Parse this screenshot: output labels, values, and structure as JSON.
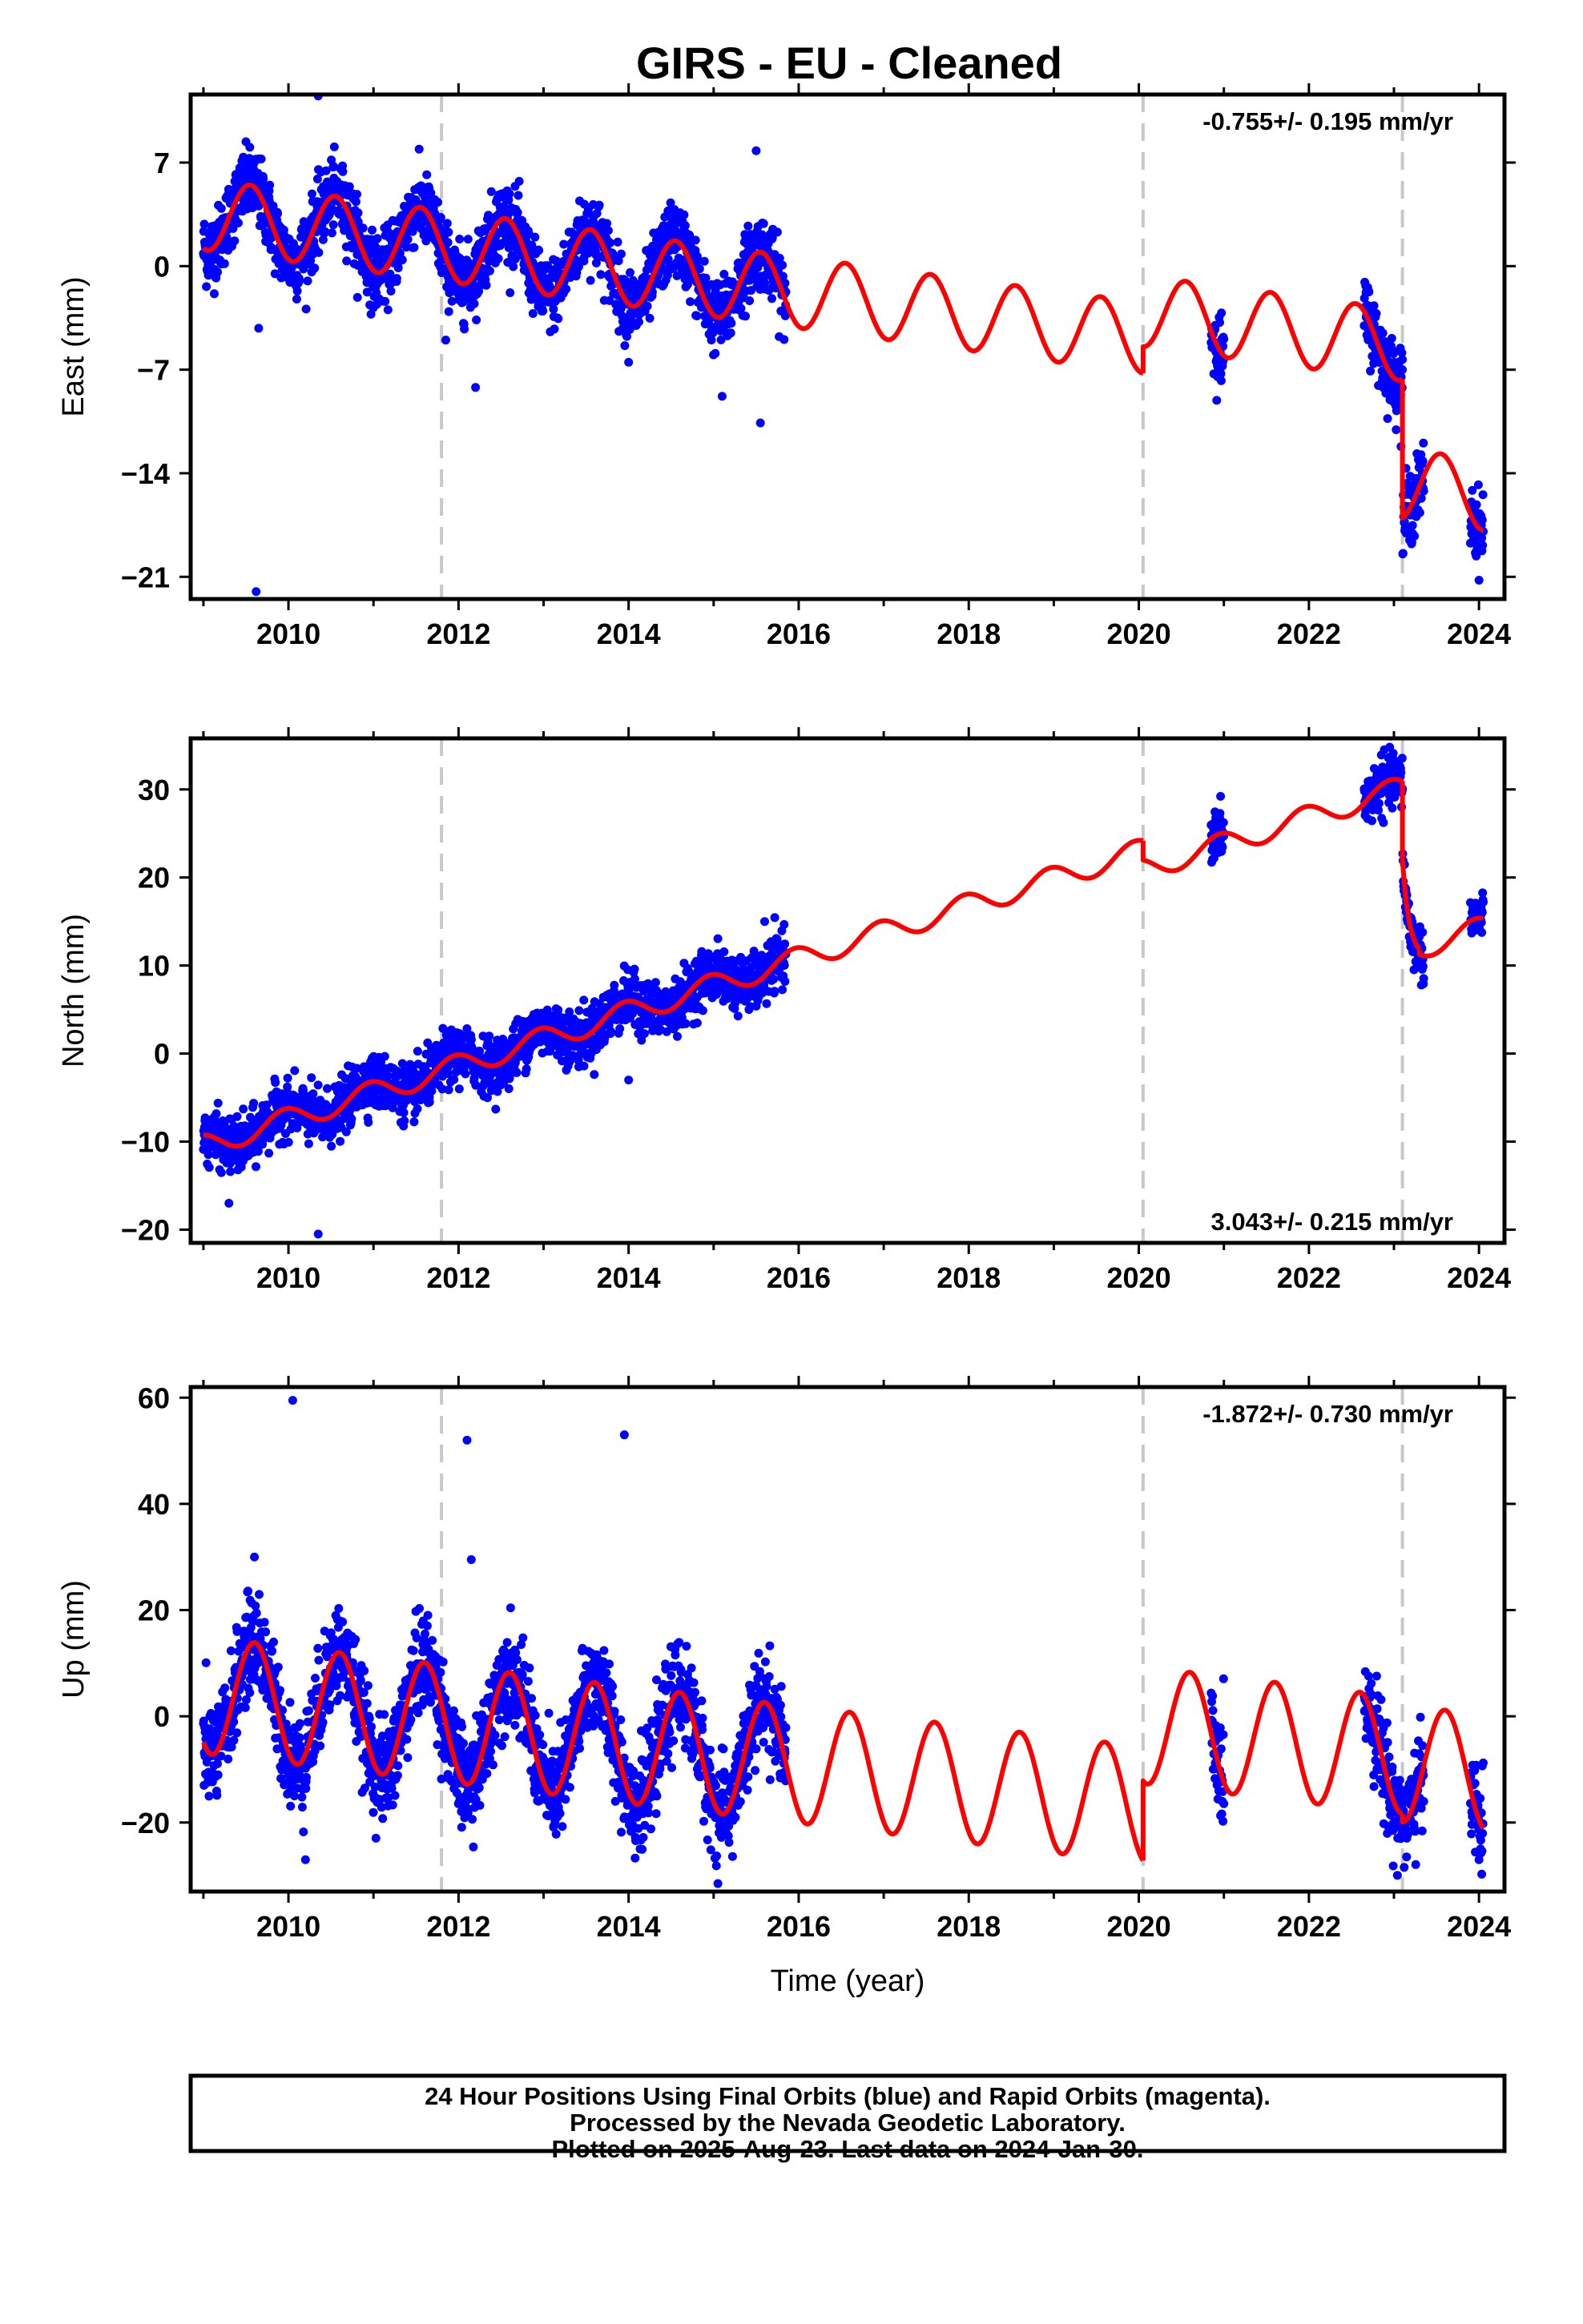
{
  "colors": {
    "data_points": "#0000ff",
    "model_line": "#ff0000",
    "event_lines": "#c8c8c8",
    "frame": "#000000"
  },
  "title": "GIRS  - EU - Cleaned",
  "footer": {
    "lines": [
      "24 Hour Positions Using Final Orbits (blue) and Rapid Orbits (magenta).",
      "Processed by the Nevada Geodetic Laboratory.",
      "Plotted on 2025-Aug-23. Last data on 2024-Jan-30."
    ]
  },
  "chart_data": [
    {
      "type": "scatter",
      "component": "East",
      "ylabel": "East (mm)",
      "xlabel": "",
      "xlim": [
        2008.85,
        2024.3
      ],
      "ylim": [
        -22.5,
        11.6
      ],
      "xticks": [
        2010,
        2012,
        2014,
        2016,
        2018,
        2020,
        2022,
        2024
      ],
      "yticks": [
        -21,
        -14,
        -7,
        0,
        7
      ],
      "ytick_labels": [
        "−21",
        "−14",
        "−7",
        "0",
        "7"
      ],
      "rate": "-0.755+/- 0.195 mm/yr",
      "rate_position": "top-right",
      "event_lines": [
        2011.8,
        2020.05,
        2023.1
      ],
      "model": {
        "segments": [
          {
            "start": 2009.0,
            "end": 2020.05,
            "offset": 3.5,
            "slope": -0.755,
            "annual": 2.4,
            "phase": 2009.55
          },
          {
            "start": 2020.05,
            "end": 2023.1,
            "offset": 3.5,
            "slope": -0.755,
            "annual": 2.4,
            "phase": 2009.55,
            "step": 1.8
          },
          {
            "start": 2023.1,
            "end": 2024.05,
            "offset": 3.5,
            "slope": -0.755,
            "annual": 2.4,
            "phase": 2009.55,
            "step": -7.6
          }
        ]
      },
      "observations": {
        "intervals": [
          [
            2009.0,
            2015.85
          ],
          [
            2020.85,
            2021.0
          ],
          [
            2022.65,
            2023.1
          ],
          [
            2023.1,
            2023.35
          ],
          [
            2023.9,
            2024.05
          ]
        ],
        "scatter_sd": 1.2,
        "outliers": [
          [
            2009.62,
            -22.0
          ],
          [
            2010.35,
            11.5
          ],
          [
            2012.2,
            -8.2
          ],
          [
            2014.0,
            -6.5
          ],
          [
            2015.1,
            -8.8
          ],
          [
            2015.5,
            7.8
          ],
          [
            2015.55,
            -10.6
          ],
          [
            2009.65,
            -4.2
          ],
          [
            2011.85,
            -5.0
          ]
        ]
      }
    },
    {
      "type": "scatter",
      "component": "North",
      "ylabel": "North (mm)",
      "xlabel": "",
      "xlim": [
        2008.85,
        2024.3
      ],
      "ylim": [
        -21.5,
        35.8
      ],
      "xticks": [
        2010,
        2012,
        2014,
        2016,
        2018,
        2020,
        2022,
        2024
      ],
      "yticks": [
        -20,
        -10,
        0,
        10,
        20,
        30
      ],
      "ytick_labels": [
        "−20",
        "−10",
        "0",
        "10",
        "20",
        "30"
      ],
      "rate": "3.043+/- 0.215 mm/yr",
      "rate_position": "bottom-right",
      "event_lines": [
        2011.8,
        2020.05,
        2023.1
      ],
      "model": {
        "segments": [
          {
            "start": 2009.0,
            "end": 2020.05,
            "offset": -10.5,
            "slope": 3.043,
            "annual": 1.3,
            "phase": 2009.95
          },
          {
            "start": 2020.05,
            "end": 2023.1,
            "offset": -10.5,
            "slope": 3.043,
            "annual": 1.3,
            "phase": 2009.95,
            "step": -2.2
          },
          {
            "start": 2023.1,
            "end": 2023.3,
            "offset": -10.5,
            "slope": 3.043,
            "annual": 1.3,
            "phase": 2009.95,
            "step": -21.0,
            "decay": 10.0,
            "tau": 0.07
          },
          {
            "start": 2023.3,
            "end": 2024.05,
            "offset": -10.5,
            "slope": 3.043,
            "annual": 1.3,
            "phase": 2009.95,
            "step": -21.0
          }
        ]
      },
      "observations": {
        "intervals": [
          [
            2009.0,
            2015.85
          ],
          [
            2020.85,
            2021.0
          ],
          [
            2022.65,
            2023.1
          ],
          [
            2023.1,
            2023.35
          ],
          [
            2023.9,
            2024.05
          ]
        ],
        "scatter_sd": 1.5,
        "outliers": [
          [
            2009.3,
            -17.0
          ],
          [
            2010.35,
            -20.5
          ],
          [
            2015.6,
            15.0
          ],
          [
            2022.95,
            34.8
          ],
          [
            2014.0,
            -3.0
          ]
        ]
      }
    },
    {
      "type": "scatter",
      "component": "Up",
      "ylabel": "Up (mm)",
      "xlabel": "Time (year)",
      "xlim": [
        2008.85,
        2024.3
      ],
      "ylim": [
        -33.0,
        62.0
      ],
      "xticks": [
        2010,
        2012,
        2014,
        2016,
        2018,
        2020,
        2022,
        2024
      ],
      "yticks": [
        -20,
        0,
        20,
        40,
        60
      ],
      "ytick_labels": [
        "−20",
        "0",
        "20",
        "40",
        "60"
      ],
      "rate": "-1.872+/- 0.730 mm/yr",
      "rate_position": "top-right",
      "event_lines": [
        2011.8,
        2020.05,
        2023.1
      ],
      "model": {
        "segments": [
          {
            "start": 2009.0,
            "end": 2020.05,
            "offset": 4.0,
            "slope": -1.872,
            "annual": 11.0,
            "phase": 2009.6
          },
          {
            "start": 2020.05,
            "end": 2023.1,
            "offset": 4.0,
            "slope": -1.872,
            "annual": 11.0,
            "phase": 2009.6,
            "step": 15.0
          },
          {
            "start": 2023.1,
            "end": 2024.05,
            "offset": 4.0,
            "slope": -1.872,
            "annual": 11.0,
            "phase": 2009.6,
            "step": 13.5
          }
        ]
      },
      "observations": {
        "intervals": [
          [
            2009.0,
            2015.85
          ],
          [
            2020.85,
            2021.0
          ],
          [
            2022.65,
            2023.1
          ],
          [
            2023.1,
            2023.35
          ],
          [
            2023.9,
            2024.05
          ]
        ],
        "scatter_sd": 4.5,
        "outliers": [
          [
            2010.05,
            59.5
          ],
          [
            2012.1,
            52.0
          ],
          [
            2013.95,
            53.0
          ],
          [
            2012.15,
            29.5
          ],
          [
            2009.6,
            30.0
          ],
          [
            2015.05,
            -31.5
          ],
          [
            2010.2,
            -27.0
          ],
          [
            2024.0,
            -27.0
          ]
        ]
      }
    }
  ]
}
